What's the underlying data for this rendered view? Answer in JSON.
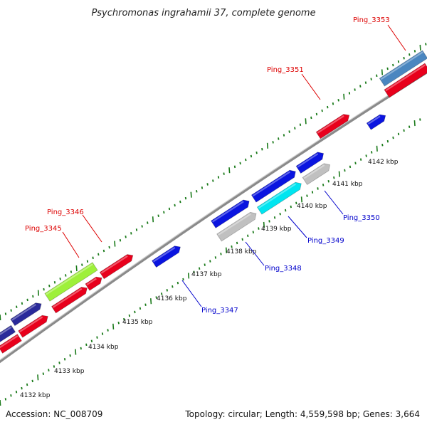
{
  "title": "Psychromonas ingrahamii 37, complete genome",
  "footer": {
    "accession": "Accession: NC_008709",
    "summary": "Topology: circular; Length: 4,559,598 bp; Genes: 3,664"
  },
  "ticks": [
    "4132 kbp",
    "4133 kbp",
    "4134 kbp",
    "4135 kbp",
    "4136 kbp",
    "4137 kbp",
    "4138 kbp",
    "4139 kbp",
    "4140 kbp",
    "4141 kbp",
    "4142 kbp"
  ],
  "gene_labels": [
    "Ping_3345",
    "Ping_3346",
    "Ping_3347",
    "Ping_3348",
    "Ping_3349",
    "Ping_3350",
    "Ping_3351",
    "Ping_3353"
  ],
  "colors": {
    "red": "#e8001c",
    "blue": "#0a14e0",
    "navy": "#2a2a9a",
    "green": "#9ef03a",
    "cyan": "#00e5f0",
    "grey": "#c0c0c0",
    "steel": "#4a86c0",
    "backbone": "#8a8a8a",
    "tick": "#1a7a1a",
    "label_red": "#dd0000",
    "label_blue": "#0000cc"
  }
}
